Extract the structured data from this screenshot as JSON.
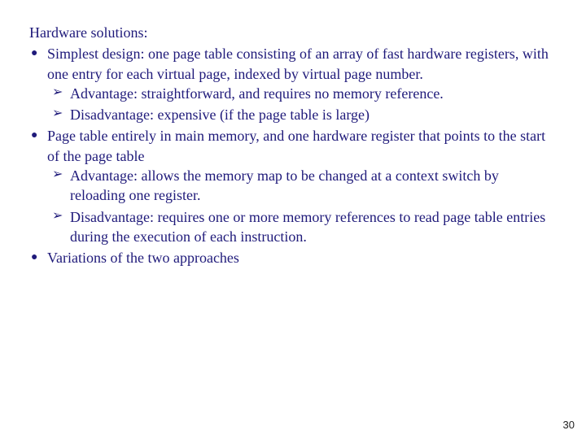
{
  "colors": {
    "text": "#1f1a7a",
    "background": "#ffffff",
    "pagenum": "#222222"
  },
  "typography": {
    "body_fontsize_pt": 14,
    "pagenum_fontsize_pt": 10,
    "body_font": "Times New Roman",
    "pagenum_font": "Arial"
  },
  "heading": "Hardware solutions:",
  "bullets": [
    {
      "text": "Simplest design: one page table consisting of an array of fast hardware registers, with one entry for each virtual page, indexed by virtual page number.",
      "sub": [
        "Advantage: straightforward, and requires no memory reference.",
        "Disadvantage: expensive (if the page table is large)"
      ]
    },
    {
      "text": "Page table entirely in main memory, and one hardware register that points to the start of the page table",
      "sub": [
        "Advantage: allows the memory map to be changed at a context switch by reloading one register.",
        "Disadvantage: requires one or more memory references to read page table entries during the execution of each instruction."
      ]
    },
    {
      "text": "Variations of the two approaches",
      "sub": []
    }
  ],
  "page_number": "30"
}
